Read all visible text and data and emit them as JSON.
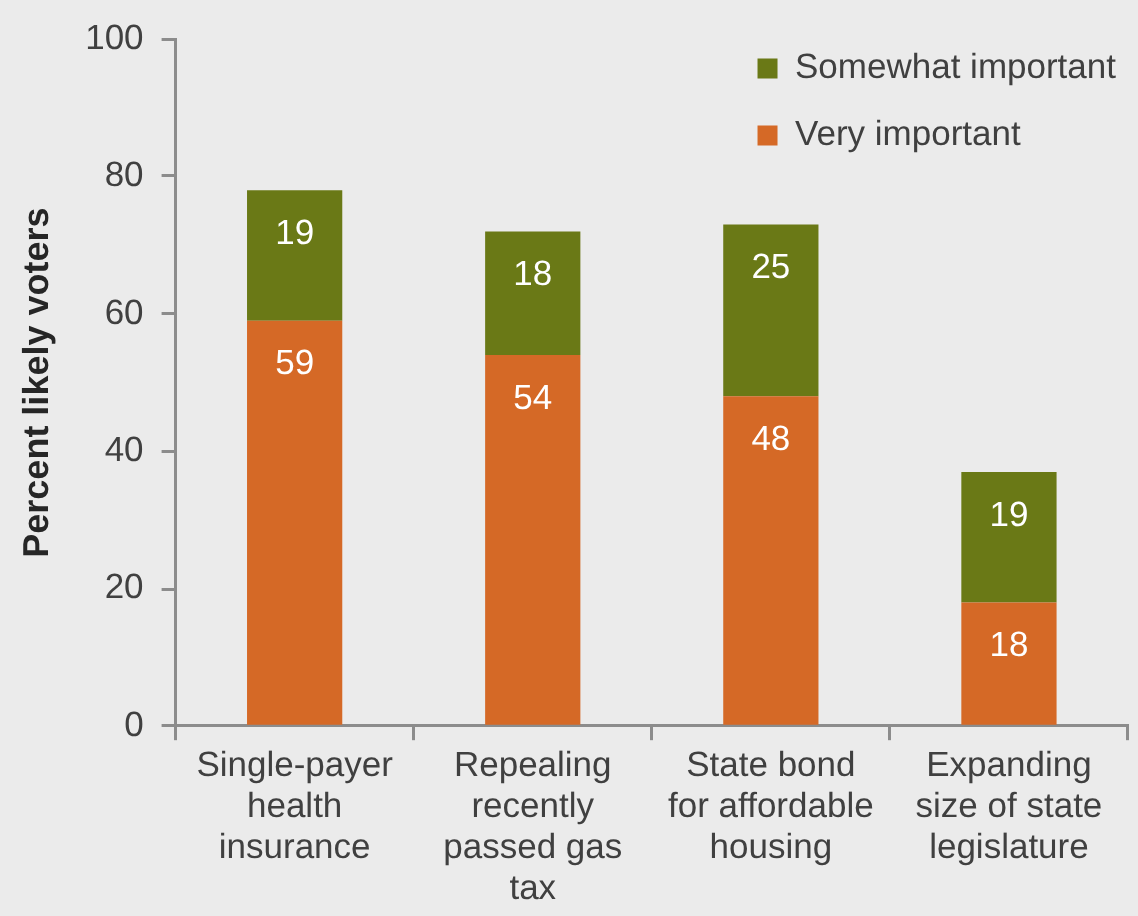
{
  "chart_data": {
    "type": "bar",
    "ylabel": "Percent likely voters",
    "categories": [
      "Single-payer health insurance",
      "Repealing recently passed gas tax",
      "State bond for affordable housing",
      "Expanding size of state legislature"
    ],
    "series": [
      {
        "name": "Very important",
        "color": "#d56926",
        "values": [
          59,
          54,
          48,
          18
        ]
      },
      {
        "name": "Somewhat important",
        "color": "#6a7916",
        "values": [
          19,
          18,
          25,
          19
        ]
      }
    ],
    "stacked": true,
    "ylim": [
      0,
      100
    ],
    "yticks": [
      0,
      20,
      40,
      60,
      80,
      100
    ],
    "data_labels": true,
    "legend": "top right",
    "grid": false
  }
}
